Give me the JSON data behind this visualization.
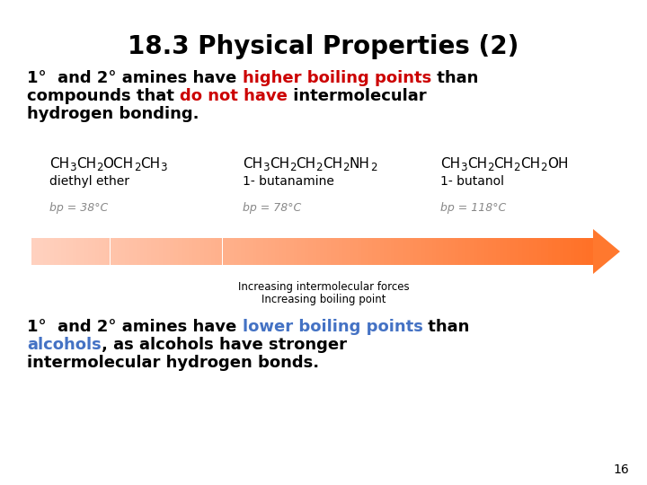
{
  "title": "18.3 Physical Properties (2)",
  "bg_color": "#ffffff",
  "title_fontsize": 20,
  "title_color": "#000000",
  "slide_number": "16",
  "arrow_label_line1": "Increasing intermolecular forces",
  "arrow_label_line2": "Increasing boiling point"
}
